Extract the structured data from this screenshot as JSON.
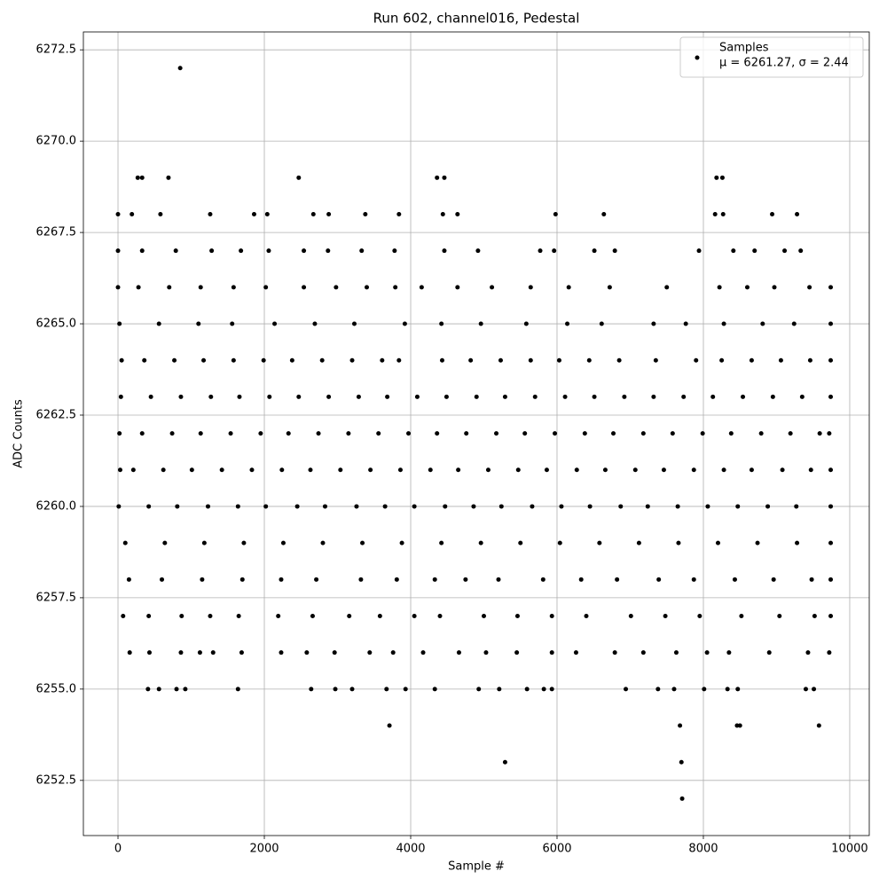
{
  "chart_data": {
    "type": "scatter",
    "title": "Run 602, channel016, Pedestal",
    "xlabel": "Sample #",
    "ylabel": "ADC Counts",
    "xlim": [
      -473,
      10267
    ],
    "ylim": [
      6250.99,
      6272.99
    ],
    "xticks": [
      0,
      2000,
      4000,
      6000,
      8000,
      10000
    ],
    "yticks": [
      6252.5,
      {
        "value": 6255,
        "label": "6255.0"
      },
      6257.5,
      {
        "value": 6260,
        "label": "6260.0"
      },
      6262.5,
      {
        "value": 6265,
        "label": "6265.0"
      },
      6267.5,
      {
        "value": 6270,
        "label": "6270.0"
      },
      6272.5
    ],
    "grid": true,
    "legend": "upper right",
    "legend_note": "μ = 6261.27, σ = 2.44",
    "x": [
      10,
      420,
      810,
      1230,
      1640,
      2020,
      2450,
      2830,
      3260,
      3650,
      4050,
      4470,
      4860,
      5240,
      5660,
      6060,
      6450,
      6870,
      7240,
      7650,
      8060,
      8470,
      8880,
      9270,
      9740,
      30,
      210,
      620,
      1010,
      1420,
      1830,
      2240,
      2630,
      3040,
      3450,
      3860,
      4270,
      4650,
      5060,
      5470,
      5860,
      6270,
      6660,
      7070,
      7460,
      7870,
      8280,
      8660,
      9080,
      9470,
      9740,
      20,
      330,
      740,
      1130,
      1540,
      1950,
      2330,
      2740,
      3150,
      3560,
      3970,
      4360,
      4760,
      5170,
      5560,
      5970,
      6380,
      6770,
      7180,
      7580,
      7990,
      8380,
      8790,
      9190,
      9590,
      9720,
      40,
      450,
      860,
      1270,
      1660,
      2070,
      2470,
      2880,
      3290,
      3680,
      4090,
      4490,
      4900,
      5290,
      5700,
      6110,
      6510,
      6920,
      7320,
      7730,
      8130,
      8540,
      8950,
      9350,
      9740,
      50,
      360,
      770,
      1170,
      1580,
      1990,
      2380,
      2790,
      3200,
      3610,
      3840,
      4430,
      4820,
      5230,
      5640,
      6030,
      6440,
      6850,
      7350,
      7900,
      8250,
      8660,
      9060,
      9460,
      9740,
      100,
      640,
      1180,
      1720,
      2260,
      2800,
      3340,
      3880,
      4420,
      4960,
      5500,
      6040,
      6580,
      7120,
      7660,
      8200,
      8740,
      9280,
      9740,
      20,
      560,
      1100,
      1560,
      2140,
      2690,
      3230,
      3920,
      4420,
      4960,
      5580,
      6140,
      6610,
      7320,
      7760,
      8280,
      8810,
      9240,
      9740,
      0,
      280,
      700,
      1130,
      1580,
      2020,
      2540,
      2980,
      3400,
      3790,
      4150,
      4640,
      5110,
      5640,
      6160,
      6720,
      7500,
      8220,
      8600,
      8970,
      9450,
      9740,
      0,
      330,
      790,
      1280,
      1680,
      2060,
      2540,
      2870,
      3330,
      3780,
      4460,
      4920,
      5770,
      5960,
      6510,
      6790,
      7940,
      8410,
      8700,
      9110,
      9330,
      150,
      600,
      1150,
      1700,
      2230,
      2710,
      3320,
      3810,
      4330,
      4750,
      5200,
      5810,
      6330,
      6820,
      7390,
      7870,
      8430,
      8960,
      9480,
      9740,
      70,
      420,
      870,
      1260,
      1650,
      2190,
      2660,
      3160,
      3580,
      4050,
      4400,
      5000,
      5460,
      5930,
      6400,
      7010,
      7480,
      7950,
      8520,
      9040,
      9520,
      9740,
      160,
      430,
      860,
      1120,
      1300,
      1690,
      2230,
      2580,
      2960,
      3440,
      3760,
      4170,
      4660,
      5030,
      5450,
      5930,
      6260,
      6790,
      7180,
      7630,
      8050,
      8350,
      8900,
      9430,
      9720,
      0,
      190,
      580,
      1260,
      1860,
      2040,
      2670,
      2880,
      3380,
      3840,
      4440,
      4640,
      5980,
      6640,
      8160,
      8270,
      8940,
      9280,
      270,
      330,
      690,
      2470,
      4360,
      4460,
      8180,
      8260,
      850,
      410,
      560,
      800,
      920,
      1640,
      2640,
      2970,
      3200,
      3670,
      3930,
      4330,
      4930,
      5210,
      5590,
      5820,
      5930,
      6940,
      7380,
      7600,
      8010,
      8330,
      8470,
      9400,
      9510,
      3710,
      7680,
      8460,
      8500,
      9580,
      5290,
      7700,
      7710
    ],
    "series": [
      {
        "name": "Samples",
        "color": "#000000",
        "values": [
          6260,
          6260,
          6260,
          6260,
          6260,
          6260,
          6260,
          6260,
          6260,
          6260,
          6260,
          6260,
          6260,
          6260,
          6260,
          6260,
          6260,
          6260,
          6260,
          6260,
          6260,
          6260,
          6260,
          6260,
          6260,
          6261,
          6261,
          6261,
          6261,
          6261,
          6261,
          6261,
          6261,
          6261,
          6261,
          6261,
          6261,
          6261,
          6261,
          6261,
          6261,
          6261,
          6261,
          6261,
          6261,
          6261,
          6261,
          6261,
          6261,
          6261,
          6261,
          6262,
          6262,
          6262,
          6262,
          6262,
          6262,
          6262,
          6262,
          6262,
          6262,
          6262,
          6262,
          6262,
          6262,
          6262,
          6262,
          6262,
          6262,
          6262,
          6262,
          6262,
          6262,
          6262,
          6262,
          6262,
          6262,
          6263,
          6263,
          6263,
          6263,
          6263,
          6263,
          6263,
          6263,
          6263,
          6263,
          6263,
          6263,
          6263,
          6263,
          6263,
          6263,
          6263,
          6263,
          6263,
          6263,
          6263,
          6263,
          6263,
          6263,
          6263,
          6264,
          6264,
          6264,
          6264,
          6264,
          6264,
          6264,
          6264,
          6264,
          6264,
          6264,
          6264,
          6264,
          6264,
          6264,
          6264,
          6264,
          6264,
          6264,
          6264,
          6264,
          6264,
          6264,
          6264,
          6264,
          6259,
          6259,
          6259,
          6259,
          6259,
          6259,
          6259,
          6259,
          6259,
          6259,
          6259,
          6259,
          6259,
          6259,
          6259,
          6259,
          6259,
          6259,
          6259,
          6265,
          6265,
          6265,
          6265,
          6265,
          6265,
          6265,
          6265,
          6265,
          6265,
          6265,
          6265,
          6265,
          6265,
          6265,
          6265,
          6265,
          6265,
          6265,
          6266,
          6266,
          6266,
          6266,
          6266,
          6266,
          6266,
          6266,
          6266,
          6266,
          6266,
          6266,
          6266,
          6266,
          6266,
          6266,
          6266,
          6266,
          6266,
          6266,
          6266,
          6266,
          6267,
          6267,
          6267,
          6267,
          6267,
          6267,
          6267,
          6267,
          6267,
          6267,
          6267,
          6267,
          6267,
          6267,
          6267,
          6267,
          6267,
          6267,
          6267,
          6267,
          6267,
          6258,
          6258,
          6258,
          6258,
          6258,
          6258,
          6258,
          6258,
          6258,
          6258,
          6258,
          6258,
          6258,
          6258,
          6258,
          6258,
          6258,
          6258,
          6258,
          6258,
          6257,
          6257,
          6257,
          6257,
          6257,
          6257,
          6257,
          6257,
          6257,
          6257,
          6257,
          6257,
          6257,
          6257,
          6257,
          6257,
          6257,
          6257,
          6257,
          6257,
          6257,
          6257,
          6256,
          6256,
          6256,
          6256,
          6256,
          6256,
          6256,
          6256,
          6256,
          6256,
          6256,
          6256,
          6256,
          6256,
          6256,
          6256,
          6256,
          6256,
          6256,
          6256,
          6256,
          6256,
          6256,
          6256,
          6256,
          6268,
          6268,
          6268,
          6268,
          6268,
          6268,
          6268,
          6268,
          6268,
          6268,
          6268,
          6268,
          6268,
          6268,
          6268,
          6268,
          6268,
          6268,
          6269,
          6269,
          6269,
          6269,
          6269,
          6269,
          6269,
          6269,
          6272,
          6255,
          6255,
          6255,
          6255,
          6255,
          6255,
          6255,
          6255,
          6255,
          6255,
          6255,
          6255,
          6255,
          6255,
          6255,
          6255,
          6255,
          6255,
          6255,
          6255,
          6255,
          6255,
          6255,
          6255,
          6254,
          6254,
          6254,
          6254,
          6254,
          6253,
          6253,
          6252
        ]
      }
    ]
  }
}
